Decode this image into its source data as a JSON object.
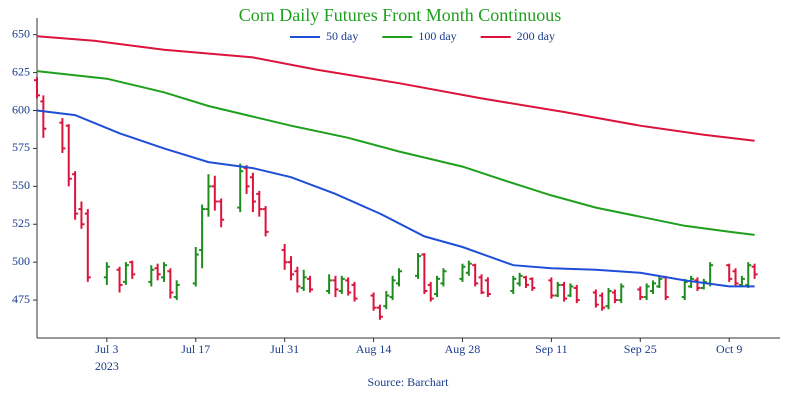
{
  "chart_data": {
    "type": "ohlc",
    "title": "Corn Daily Futures Front Month Continuous",
    "source": "Source: Barchart",
    "x_year_label": "2023",
    "increasing_color": "#1e8c1e",
    "decreasing_color": "#dc143c",
    "x": [
      "2023-06-22",
      "2023-06-23",
      "2023-06-26",
      "2023-06-27",
      "2023-06-28",
      "2023-06-29",
      "2023-06-30",
      "2023-07-03",
      "2023-07-05",
      "2023-07-06",
      "2023-07-07",
      "2023-07-10",
      "2023-07-11",
      "2023-07-12",
      "2023-07-13",
      "2023-07-14",
      "2023-07-17",
      "2023-07-18",
      "2023-07-19",
      "2023-07-20",
      "2023-07-21",
      "2023-07-24",
      "2023-07-25",
      "2023-07-26",
      "2023-07-27",
      "2023-07-28",
      "2023-07-31",
      "2023-08-01",
      "2023-08-02",
      "2023-08-03",
      "2023-08-04",
      "2023-08-07",
      "2023-08-08",
      "2023-08-09",
      "2023-08-10",
      "2023-08-11",
      "2023-08-14",
      "2023-08-15",
      "2023-08-16",
      "2023-08-17",
      "2023-08-18",
      "2023-08-21",
      "2023-08-22",
      "2023-08-23",
      "2023-08-24",
      "2023-08-25",
      "2023-08-28",
      "2023-08-29",
      "2023-08-30",
      "2023-08-31",
      "2023-09-01",
      "2023-09-05",
      "2023-09-06",
      "2023-09-07",
      "2023-09-08",
      "2023-09-11",
      "2023-09-12",
      "2023-09-13",
      "2023-09-14",
      "2023-09-15",
      "2023-09-18",
      "2023-09-19",
      "2023-09-20",
      "2023-09-21",
      "2023-09-22",
      "2023-09-25",
      "2023-09-26",
      "2023-09-27",
      "2023-09-28",
      "2023-09-29",
      "2023-10-02",
      "2023-10-03",
      "2023-10-04",
      "2023-10-05",
      "2023-10-06",
      "2023-10-09",
      "2023-10-10",
      "2023-10-11",
      "2023-10-12",
      "2023-10-13"
    ],
    "open": [
      620,
      606,
      592,
      590,
      558,
      535,
      532,
      490,
      495,
      487,
      500,
      487,
      496,
      490,
      494,
      477,
      486,
      508,
      535,
      550,
      540,
      536,
      562,
      556,
      545,
      535,
      508,
      500,
      494,
      483,
      489,
      481,
      488,
      481,
      488,
      485,
      478,
      470,
      471,
      477,
      486,
      491,
      505,
      485,
      479,
      486,
      489,
      493,
      498,
      490,
      488,
      481,
      486,
      490,
      489,
      488,
      478,
      485,
      478,
      483,
      480,
      478,
      471,
      480,
      475,
      482,
      477,
      481,
      484,
      490,
      477,
      484,
      488,
      483,
      486,
      498,
      494,
      485,
      485,
      497
    ],
    "high": [
      622,
      610,
      595,
      591,
      560,
      540,
      535,
      500,
      497,
      500,
      501,
      498,
      499,
      500,
      496,
      488,
      510,
      538,
      558,
      557,
      542,
      565,
      564,
      559,
      547,
      537,
      512,
      504,
      497,
      495,
      491,
      492,
      491,
      491,
      490,
      487,
      480,
      472,
      481,
      491,
      496,
      506,
      506,
      487,
      491,
      496,
      499,
      501,
      499,
      492,
      490,
      491,
      493,
      491,
      490,
      490,
      487,
      487,
      486,
      485,
      482,
      480,
      483,
      482,
      486,
      484,
      486,
      488,
      491,
      491,
      489,
      491,
      490,
      489,
      500,
      499,
      496,
      491,
      500,
      499
    ],
    "low": [
      608,
      582,
      572,
      550,
      528,
      522,
      487,
      485,
      480,
      485,
      489,
      484,
      488,
      487,
      476,
      475,
      484,
      496,
      530,
      534,
      523,
      533,
      545,
      533,
      530,
      517,
      495,
      488,
      480,
      481,
      480,
      479,
      477,
      479,
      478,
      474,
      468,
      462,
      469,
      475,
      484,
      489,
      479,
      474,
      477,
      484,
      487,
      491,
      484,
      479,
      477,
      479,
      484,
      483,
      481,
      476,
      477,
      474,
      477,
      473,
      470,
      468,
      469,
      473,
      473,
      475,
      475,
      479,
      483,
      475,
      475,
      483,
      481,
      482,
      484,
      487,
      484,
      484,
      483,
      489
    ],
    "close": [
      610,
      588,
      575,
      555,
      532,
      525,
      490,
      497,
      485,
      498,
      492,
      495,
      492,
      498,
      480,
      485,
      505,
      535,
      550,
      540,
      528,
      560,
      550,
      540,
      535,
      520,
      500,
      492,
      484,
      490,
      482,
      488,
      482,
      489,
      480,
      476,
      470,
      464,
      478,
      488,
      494,
      504,
      481,
      476,
      489,
      494,
      497,
      499,
      486,
      480,
      479,
      489,
      491,
      485,
      483,
      478,
      485,
      476,
      484,
      475,
      472,
      470,
      481,
      475,
      484,
      477,
      484,
      486,
      489,
      477,
      487,
      489,
      483,
      487,
      498,
      489,
      486,
      489,
      498,
      492
    ],
    "series": [
      {
        "name": "50 day",
        "color": "#1f4fd8",
        "x": [
          "2023-06-22",
          "2023-06-28",
          "2023-07-05",
          "2023-07-12",
          "2023-07-19",
          "2023-07-26",
          "2023-08-01",
          "2023-08-08",
          "2023-08-15",
          "2023-08-22",
          "2023-08-28",
          "2023-09-05",
          "2023-09-11",
          "2023-09-18",
          "2023-09-25",
          "2023-10-02",
          "2023-10-09",
          "2023-10-13"
        ],
        "values": [
          600,
          597,
          585,
          575,
          566,
          562,
          556,
          545,
          532,
          517,
          510,
          498,
          496,
          495,
          493,
          488,
          484,
          484
        ]
      },
      {
        "name": "100 day",
        "color": "#1ea01e",
        "x": [
          "2023-06-22",
          "2023-07-03",
          "2023-07-12",
          "2023-07-19",
          "2023-07-26",
          "2023-08-01",
          "2023-08-10",
          "2023-08-18",
          "2023-08-28",
          "2023-09-05",
          "2023-09-11",
          "2023-09-18",
          "2023-09-25",
          "2023-10-02",
          "2023-10-09",
          "2023-10-13"
        ],
        "values": [
          626,
          621,
          612,
          603,
          596,
          590,
          582,
          573,
          563,
          552,
          544,
          536,
          530,
          524,
          520,
          518
        ]
      },
      {
        "name": "200 day",
        "color": "#dc143c",
        "x": [
          "2023-06-22",
          "2023-07-01",
          "2023-07-12",
          "2023-07-26",
          "2023-08-05",
          "2023-08-18",
          "2023-08-31",
          "2023-09-13",
          "2023-09-25",
          "2023-10-05",
          "2023-10-13"
        ],
        "values": [
          649,
          646,
          640,
          635,
          627,
          618,
          608,
          599,
          590,
          584,
          580
        ]
      }
    ],
    "xlim": [
      "2023-06-22",
      "2023-10-17"
    ],
    "xticks": [
      {
        "value": "2023-07-03",
        "label": "Jul 3"
      },
      {
        "value": "2023-07-17",
        "label": "Jul 17"
      },
      {
        "value": "2023-07-31",
        "label": "Jul 31"
      },
      {
        "value": "2023-08-14",
        "label": "Aug 14"
      },
      {
        "value": "2023-08-28",
        "label": "Aug 28"
      },
      {
        "value": "2023-09-11",
        "label": "Sep 11"
      },
      {
        "value": "2023-09-25",
        "label": "Sep 25"
      },
      {
        "value": "2023-10-09",
        "label": "Oct 9"
      }
    ],
    "ylim": [
      450,
      661
    ],
    "yticks": [
      475,
      500,
      525,
      550,
      575,
      600,
      625,
      650
    ],
    "grid": false
  }
}
